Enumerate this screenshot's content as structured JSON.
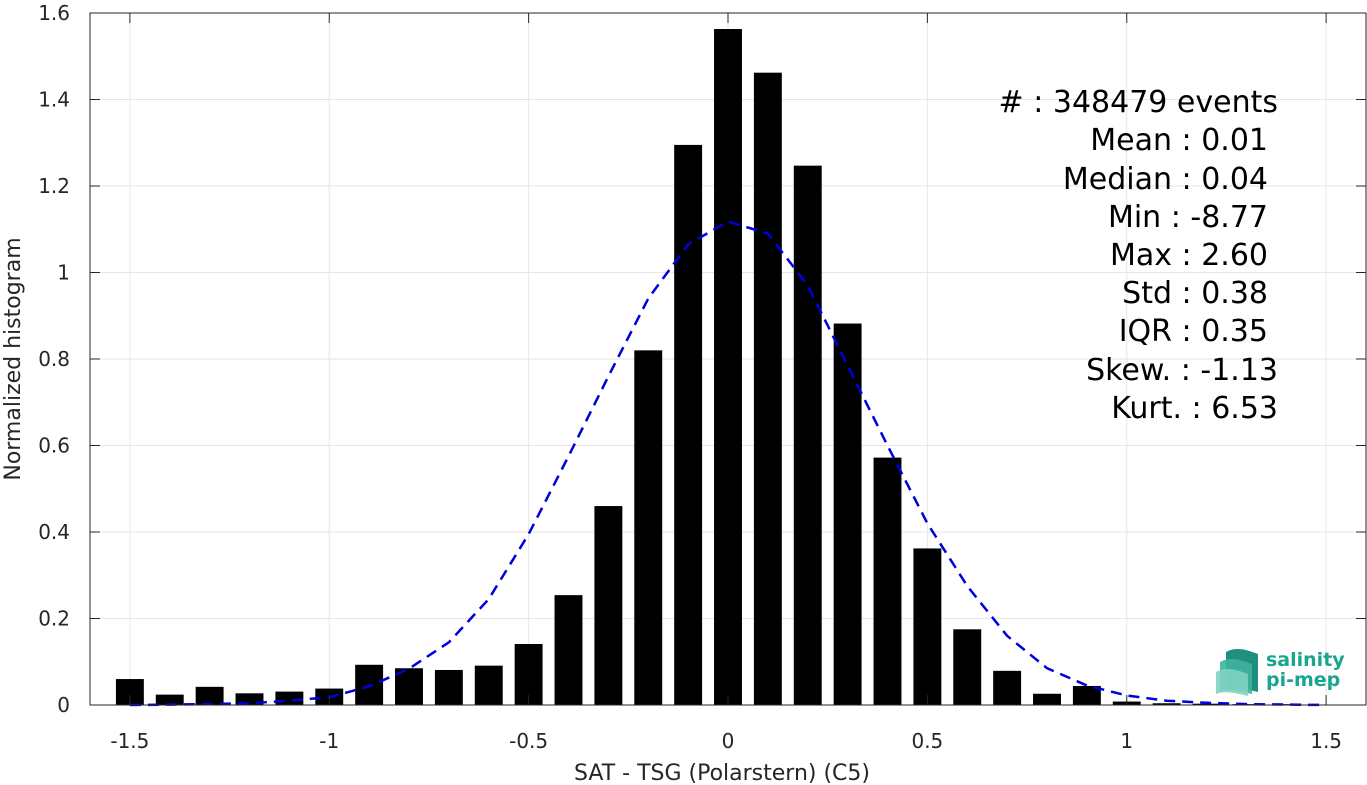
{
  "chart_data": {
    "type": "bar",
    "xlabel": "SAT - TSG (Polarstern) (C5)",
    "ylabel": "Normalized histogram",
    "xlim": [
      -1.6,
      1.6
    ],
    "ylim": [
      0,
      1.6
    ],
    "xticks": [
      -1.5,
      -1,
      -0.5,
      0,
      0.5,
      1,
      1.5
    ],
    "xtick_labels": [
      "-1.5",
      "-1",
      "-0.5",
      "0",
      "0.5",
      "1",
      "1.5"
    ],
    "yticks": [
      0,
      0.2,
      0.4,
      0.6,
      0.8,
      1,
      1.2,
      1.4,
      1.6
    ],
    "ytick_labels": [
      "0",
      "0.2",
      "0.4",
      "0.6",
      "0.8",
      "1",
      "1.2",
      "1.4",
      "1.6"
    ],
    "grid": true,
    "bar_width": 0.07,
    "bar_color": "#000000",
    "curve_color": "#0000dd",
    "curve_style": "dashed",
    "bins": [
      -1.5,
      -1.4,
      -1.3,
      -1.2,
      -1.1,
      -1.0,
      -0.9,
      -0.8,
      -0.7,
      -0.6,
      -0.5,
      -0.4,
      -0.3,
      -0.2,
      -0.1,
      0.0,
      0.1,
      0.2,
      0.3,
      0.4,
      0.5,
      0.6,
      0.7,
      0.8,
      0.9,
      1.0,
      1.1,
      1.2,
      1.3,
      1.4,
      1.5
    ],
    "values": [
      0.06,
      0.024,
      0.042,
      0.027,
      0.031,
      0.038,
      0.093,
      0.085,
      0.081,
      0.091,
      0.141,
      0.254,
      0.46,
      0.82,
      1.295,
      1.563,
      1.462,
      1.247,
      0.882,
      0.572,
      0.362,
      0.175,
      0.079,
      0.026,
      0.044,
      0.008,
      0.004,
      0.003,
      0.002,
      0.002,
      0.001
    ],
    "fit_curve": {
      "x": [
        -1.5,
        -1.4,
        -1.3,
        -1.2,
        -1.1,
        -1.0,
        -0.9,
        -0.8,
        -0.7,
        -0.6,
        -0.5,
        -0.4,
        -0.3,
        -0.2,
        -0.1,
        0.0,
        0.1,
        0.2,
        0.3,
        0.4,
        0.5,
        0.6,
        0.7,
        0.8,
        0.9,
        1.0,
        1.1,
        1.2,
        1.3,
        1.4,
        1.5
      ],
      "y": [
        0.0,
        0.001,
        0.002,
        0.004,
        0.01,
        0.018,
        0.043,
        0.084,
        0.145,
        0.245,
        0.395,
        0.575,
        0.76,
        0.94,
        1.065,
        1.118,
        1.09,
        0.97,
        0.785,
        0.6,
        0.42,
        0.275,
        0.16,
        0.085,
        0.045,
        0.022,
        0.01,
        0.005,
        0.002,
        0.001,
        0.0
      ]
    }
  },
  "stats": [
    {
      "label": "#  : 348479 events"
    },
    {
      "label": "Mean : 0.01"
    },
    {
      "label": "Median : 0.04"
    },
    {
      "label": "Min : -8.77"
    },
    {
      "label": "Max : 2.60"
    },
    {
      "label": "Std : 0.38"
    },
    {
      "label": "IQR : 0.35"
    },
    {
      "label": "Skew. : -1.13"
    },
    {
      "label": "Kurt. : 6.53"
    }
  ],
  "logo": {
    "line1": "salinity",
    "line2": "pi-mep"
  }
}
